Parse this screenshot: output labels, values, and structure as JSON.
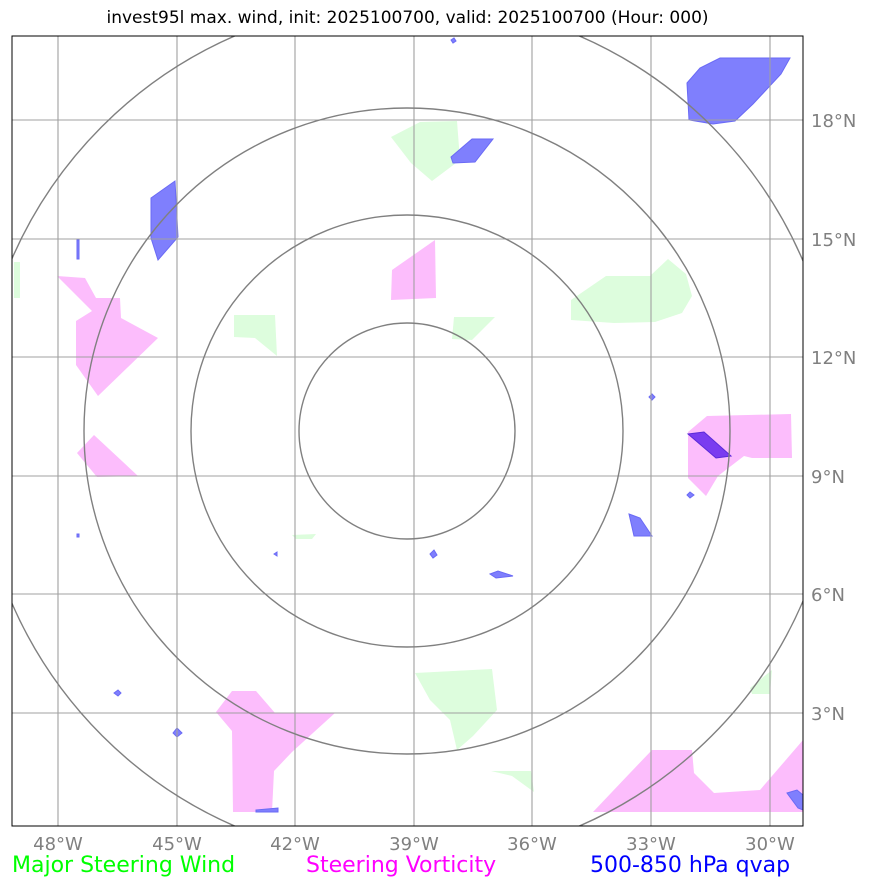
{
  "title": "invest95l max. wind, init: 2025100700, valid: 2025100700 (Hour: 000)",
  "longitude_labels": [
    "48°W",
    "45°W",
    "42°W",
    "39°W",
    "36°W",
    "33°W",
    "30°W"
  ],
  "latitude_labels": [
    "18°N",
    "15°N",
    "12°N",
    "9°N",
    "6°N",
    "3°N"
  ],
  "legend": {
    "wind": "Major Steering Wind",
    "vorticity": "Steering Vorticity",
    "qvap": "500-850 hPa qvap"
  },
  "colors": {
    "wind": "#00ff00",
    "vorticity": "#ff00ff",
    "qvap": "#0000ff",
    "wind_fill": "#ddfddd",
    "vorticity_fill": "#fcbdfc",
    "qvap_fill": "#7f7ffd",
    "grid": "#a0a0a0",
    "rings": "#808080"
  },
  "map": {
    "extent_lon": [
      -49.2,
      -28.8
    ],
    "extent_lat": [
      0.3,
      20.2
    ],
    "gridlines": true,
    "range_rings_count": 4
  }
}
